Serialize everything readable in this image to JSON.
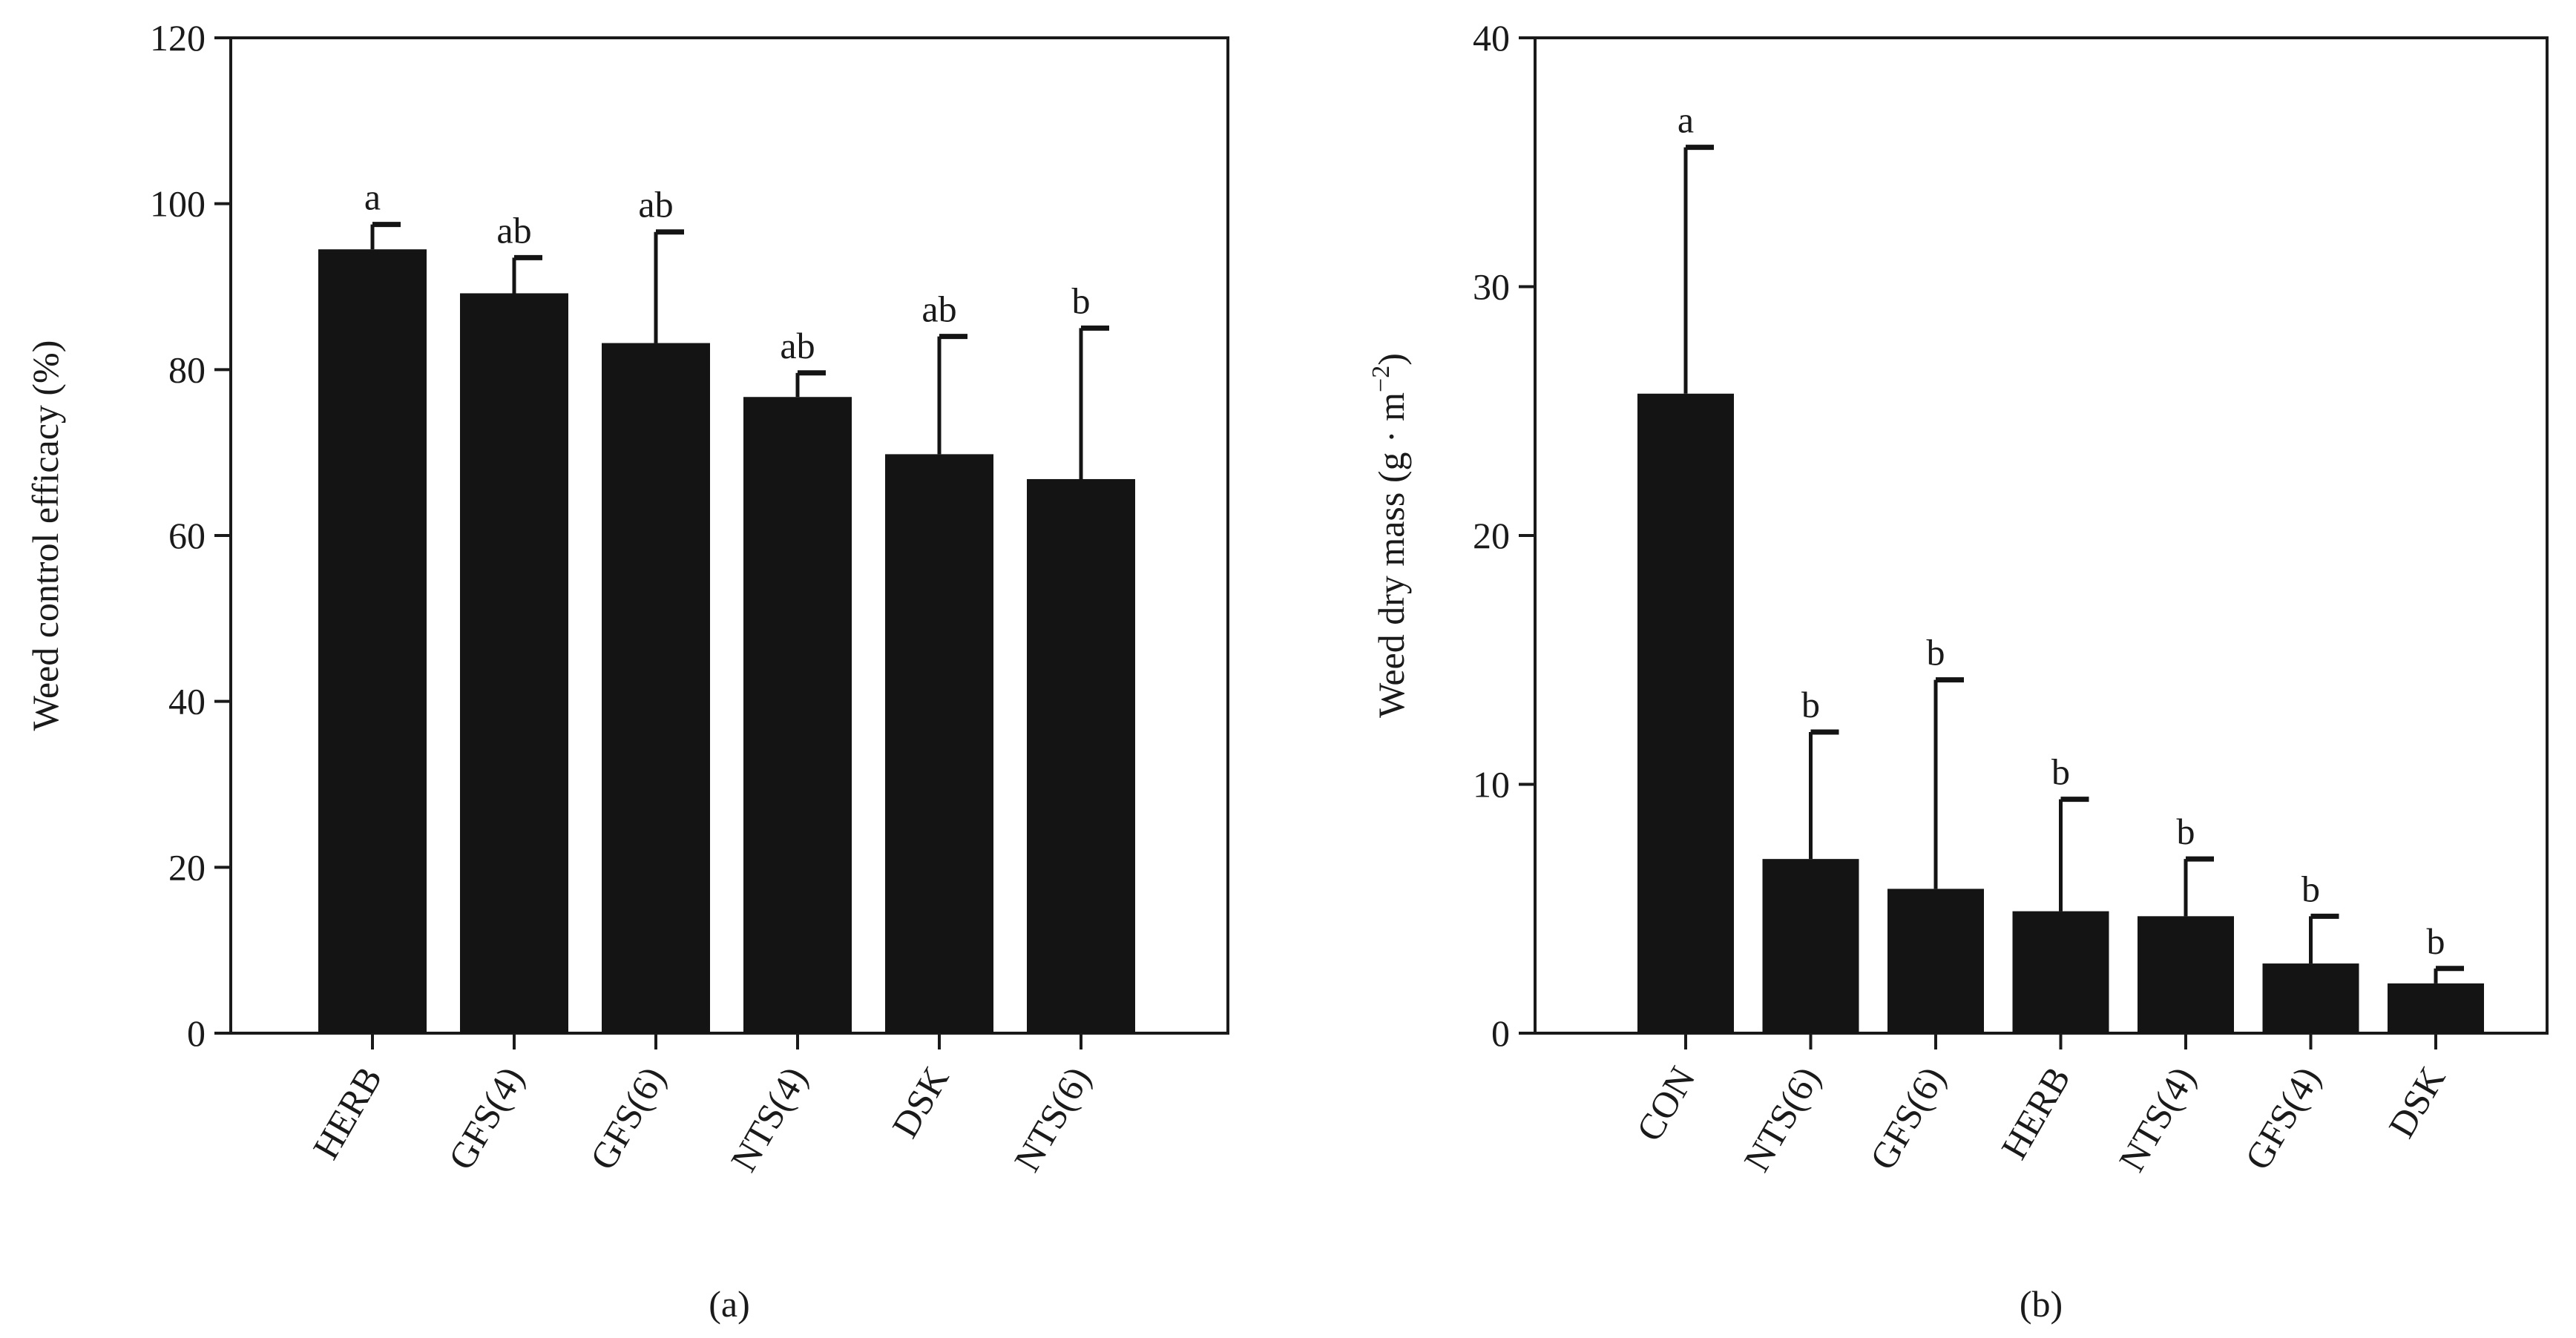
{
  "chart_data": [
    {
      "panel": "(a)",
      "type": "bar",
      "title": "",
      "xlabel": "",
      "ylabel": "Weed control efficacy (%)",
      "ylim": [
        0,
        120
      ],
      "yticks": [
        0,
        20,
        40,
        60,
        80,
        100,
        120
      ],
      "categories": [
        "HERB",
        "GFS(4)",
        "GFS(6)",
        "NTS(4)",
        "DSK",
        "NTS(6)"
      ],
      "values": [
        94.5,
        89.2,
        83.2,
        76.7,
        69.8,
        66.8
      ],
      "errors": [
        3.0,
        4.3,
        13.4,
        2.9,
        14.2,
        18.2
      ],
      "letters": [
        "a",
        "ab",
        "ab",
        "ab",
        "ab",
        "b"
      ],
      "bar_color": "#141414"
    },
    {
      "panel": "(b)",
      "type": "bar",
      "title": "",
      "xlabel": "",
      "ylabel": "Weed dry mass (g · m",
      "ylabel_sup": "−2",
      "ylabel_end": ")",
      "ylim": [
        0,
        40
      ],
      "yticks": [
        0,
        10,
        20,
        30,
        40
      ],
      "categories": [
        "CON",
        "NTS(6)",
        "GFS(6)",
        "HERB",
        "NTS(4)",
        "GFS(4)",
        "DSK"
      ],
      "values": [
        25.7,
        7.0,
        5.8,
        4.9,
        4.7,
        2.8,
        2.0
      ],
      "errors": [
        9.9,
        5.1,
        8.4,
        4.5,
        2.3,
        1.9,
        0.6
      ],
      "letters": [
        "a",
        "b",
        "b",
        "b",
        "b",
        "b",
        "b"
      ],
      "bar_color": "#141414"
    }
  ]
}
